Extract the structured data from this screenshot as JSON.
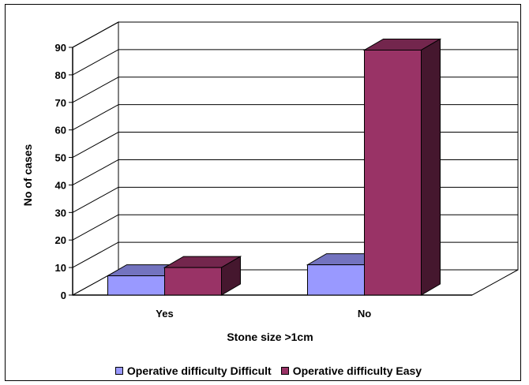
{
  "chart_data": {
    "type": "bar",
    "title": "",
    "xlabel": "Stone size >1cm",
    "ylabel": "No of cases",
    "categories": [
      "Yes",
      "No"
    ],
    "series": [
      {
        "name": "Operative difficulty Difficult",
        "color": "#9999ff",
        "values": [
          7,
          11
        ]
      },
      {
        "name": "Operative difficulty Easy",
        "color": "#993366",
        "values": [
          10,
          89
        ]
      }
    ],
    "ylim": [
      0,
      90
    ],
    "yticks": [
      0,
      10,
      20,
      30,
      40,
      50,
      60,
      70,
      80,
      90
    ],
    "grid": true,
    "three_d": true,
    "legend_position": "bottom"
  }
}
